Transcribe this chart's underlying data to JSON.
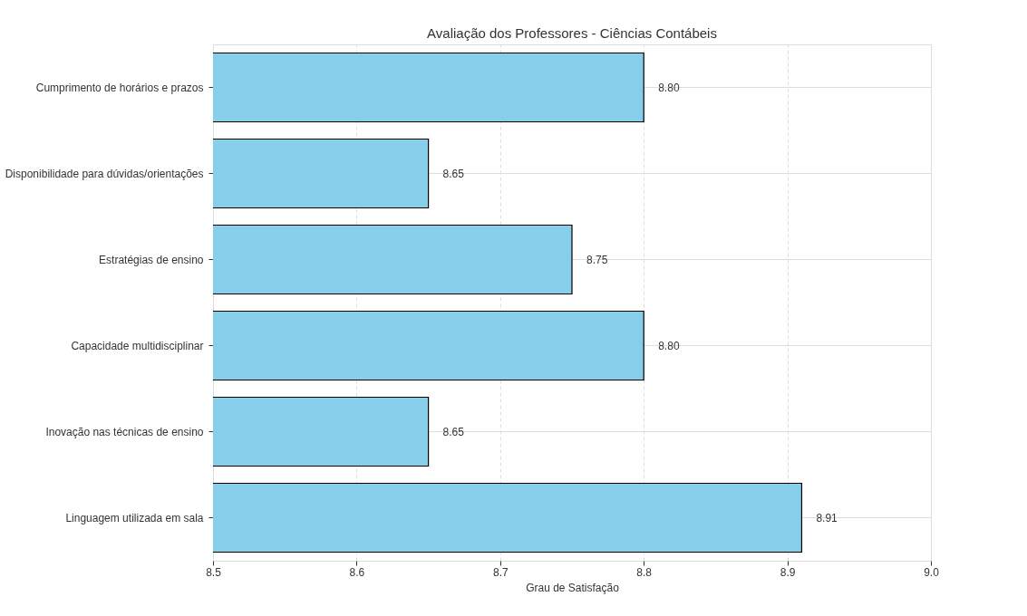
{
  "chart_data": {
    "type": "bar",
    "orientation": "horizontal",
    "title": "Avaliação dos Professores - Ciências Contábeis",
    "xlabel": "Grau de Satisfação",
    "categories": [
      "Cumprimento de horários e prazos",
      "Disponibilidade para dúvidas/orientações",
      "Estratégias de ensino",
      "Capacidade multidisciplinar",
      "Inovação nas técnicas de ensino",
      "Linguagem utilizada em sala"
    ],
    "values": [
      8.8,
      8.65,
      8.75,
      8.8,
      8.65,
      8.91
    ],
    "value_labels": [
      "8.80",
      "8.65",
      "8.75",
      "8.80",
      "8.65",
      "8.91"
    ],
    "color": "#87ceeb",
    "xlim": [
      8.5,
      9.0
    ],
    "xticks": [
      8.5,
      8.6,
      8.7,
      8.8,
      8.9,
      {
        "value": 9.0,
        "label": "9.0"
      }
    ],
    "grid": true
  }
}
